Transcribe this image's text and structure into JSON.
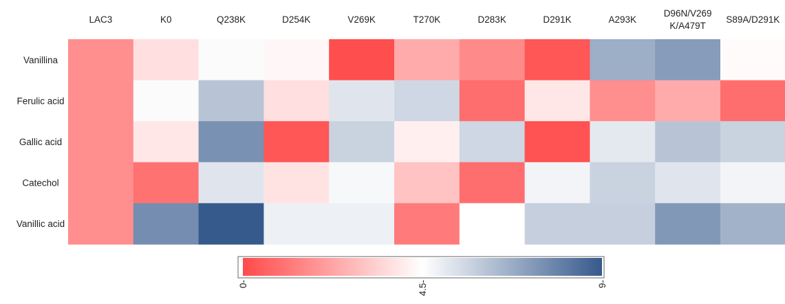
{
  "chart_data": {
    "type": "heatmap",
    "columns": [
      "LAC3",
      "K0",
      "Q238K",
      "D254K",
      "V269K",
      "T270K",
      "D283K",
      "D291K",
      "A293K",
      "D96N/V269K/A479T",
      "S89A/D291K"
    ],
    "column_label_lines": [
      [
        "LAC3"
      ],
      [
        "K0"
      ],
      [
        "Q238K"
      ],
      [
        "D254K"
      ],
      [
        "V269K"
      ],
      [
        "T270K"
      ],
      [
        "D283K"
      ],
      [
        "D291K"
      ],
      [
        "A293K"
      ],
      [
        "D96N/V269",
        "K/A479T"
      ],
      [
        "S89A/D291K"
      ]
    ],
    "rows": [
      "Vanillina",
      "Ferulic acid",
      "Gallic acid",
      "Catechol",
      "Vanillic acid"
    ],
    "values": [
      [
        1.7,
        3.7,
        4.6,
        4.3,
        0.1,
        2.4,
        1.6,
        0.3,
        6.7,
        7.2,
        4.4
      ],
      [
        1.7,
        4.6,
        6.1,
        3.7,
        5.2,
        5.6,
        0.9,
        3.9,
        1.7,
        2.4,
        0.9
      ],
      [
        1.7,
        3.9,
        7.5,
        0.3,
        5.7,
        4.1,
        5.6,
        0.2,
        5.1,
        6.1,
        5.7
      ],
      [
        1.7,
        1.0,
        5.2,
        3.8,
        4.7,
        3.0,
        0.9,
        4.8,
        5.7,
        5.2,
        4.8
      ],
      [
        1.7,
        7.6,
        9.0,
        4.9,
        4.9,
        1.2,
        4.5,
        5.8,
        5.8,
        7.3,
        6.6
      ]
    ],
    "scale": {
      "min": 0,
      "mid": 4.5,
      "max": 9,
      "colors": [
        "#ff4a4a",
        "#ffffff",
        "#365a8c"
      ],
      "tick_labels": [
        "0-",
        "4.5-",
        "9-"
      ]
    },
    "colorbar_tick_positions": [
      0,
      4.5,
      9
    ],
    "legend": "bottom-center",
    "grid": false
  }
}
